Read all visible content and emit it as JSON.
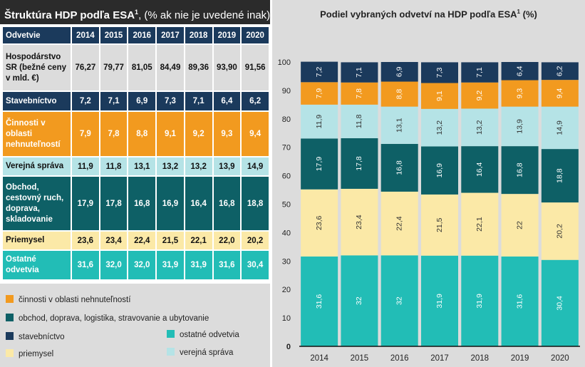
{
  "table": {
    "title_main": "Štruktúra HDP podľa ESA",
    "title_sup": "1",
    "title_rest": ", (% ak nie je uvedené inak)",
    "header": "Odvetvie",
    "years": [
      "2014",
      "2015",
      "2016",
      "2017",
      "2018",
      "2019",
      "2020"
    ],
    "rows": [
      {
        "label": "Hospodárstvo SR (bežné ceny v mld. €)",
        "values": [
          "76,27",
          "79,77",
          "81,05",
          "84,49",
          "89,36",
          "93,90",
          "91,56"
        ]
      },
      {
        "label": "Stavebníctvo",
        "values": [
          "7,2",
          "7,1",
          "6,9",
          "7,3",
          "7,1",
          "6,4",
          "6,2"
        ]
      },
      {
        "label": "Činnosti v oblasti nehnuteľností",
        "values": [
          "7,9",
          "7,8",
          "8,8",
          "9,1",
          "9,2",
          "9,3",
          "9,4"
        ]
      },
      {
        "label": "Verejná správa",
        "values": [
          "11,9",
          "11,8",
          "13,1",
          "13,2",
          "13,2",
          "13,9",
          "14,9"
        ]
      },
      {
        "label": "Obchod, cestovný ruch, doprava, skladovanie",
        "values": [
          "17,9",
          "17,8",
          "16,8",
          "16,9",
          "16,4",
          "16,8",
          "18,8"
        ]
      },
      {
        "label": "Priemysel",
        "values": [
          "23,6",
          "23,4",
          "22,4",
          "21,5",
          "22,1",
          "22,0",
          "20,2"
        ]
      },
      {
        "label": "Ostatné odvetvia",
        "values": [
          "31,6",
          "32,0",
          "32,0",
          "31,9",
          "31,9",
          "31,6",
          "30,4"
        ]
      }
    ]
  },
  "legend": {
    "realestate": "činnosti v oblasti nehnuteľností",
    "trade": "obchod, doprava, logistika, stravovanie a ubytovanie",
    "construction": "stavebníctvo",
    "other": "ostatné odvetvia",
    "industry": "priemysel",
    "public": "verejná správa"
  },
  "colors": {
    "navy": "#1b3a5c",
    "orange": "#f29a1f",
    "lightblue": "#b5e3e6",
    "darkteal": "#0e6066",
    "yellow": "#fbe9a7",
    "teal": "#22bdb6",
    "gray": "#dcdcdc"
  },
  "chart_data": {
    "type": "bar",
    "stacked": true,
    "title": "Podiel vybraných odvetví na HDP podľa ESA",
    "title_sup": "1",
    "title_suffix": " (%)",
    "categories": [
      "2014",
      "2015",
      "2016",
      "2017",
      "2018",
      "2019",
      "2020"
    ],
    "ylim": [
      0,
      100
    ],
    "yticks": [
      0,
      10,
      20,
      30,
      40,
      50,
      60,
      70,
      80,
      90,
      100
    ],
    "grid": false,
    "series": [
      {
        "key": "other",
        "name": "ostatné odvetvia",
        "color": "#22bdb6",
        "values": [
          31.6,
          32.0,
          32.0,
          31.9,
          31.9,
          31.6,
          30.4
        ]
      },
      {
        "key": "industry",
        "name": "priemysel",
        "color": "#fbe9a7",
        "values": [
          23.6,
          23.4,
          22.4,
          21.5,
          22.1,
          22.0,
          20.2
        ]
      },
      {
        "key": "trade",
        "name": "obchod, doprava, logistika, stravovanie a ubytovanie",
        "color": "#0e6066",
        "values": [
          17.9,
          17.8,
          16.8,
          16.9,
          16.4,
          16.8,
          18.8
        ]
      },
      {
        "key": "public",
        "name": "verejná správa",
        "color": "#b5e3e6",
        "values": [
          11.9,
          11.8,
          13.1,
          13.2,
          13.2,
          13.9,
          14.9
        ]
      },
      {
        "key": "realestate",
        "name": "činnosti v oblasti nehnuteľností",
        "color": "#f29a1f",
        "values": [
          7.9,
          7.8,
          8.8,
          9.1,
          9.2,
          9.3,
          9.4
        ]
      },
      {
        "key": "construction",
        "name": "stavebníctvo",
        "color": "#1b3a5c",
        "values": [
          7.2,
          7.1,
          6.9,
          7.3,
          7.1,
          6.4,
          6.2
        ]
      }
    ]
  }
}
